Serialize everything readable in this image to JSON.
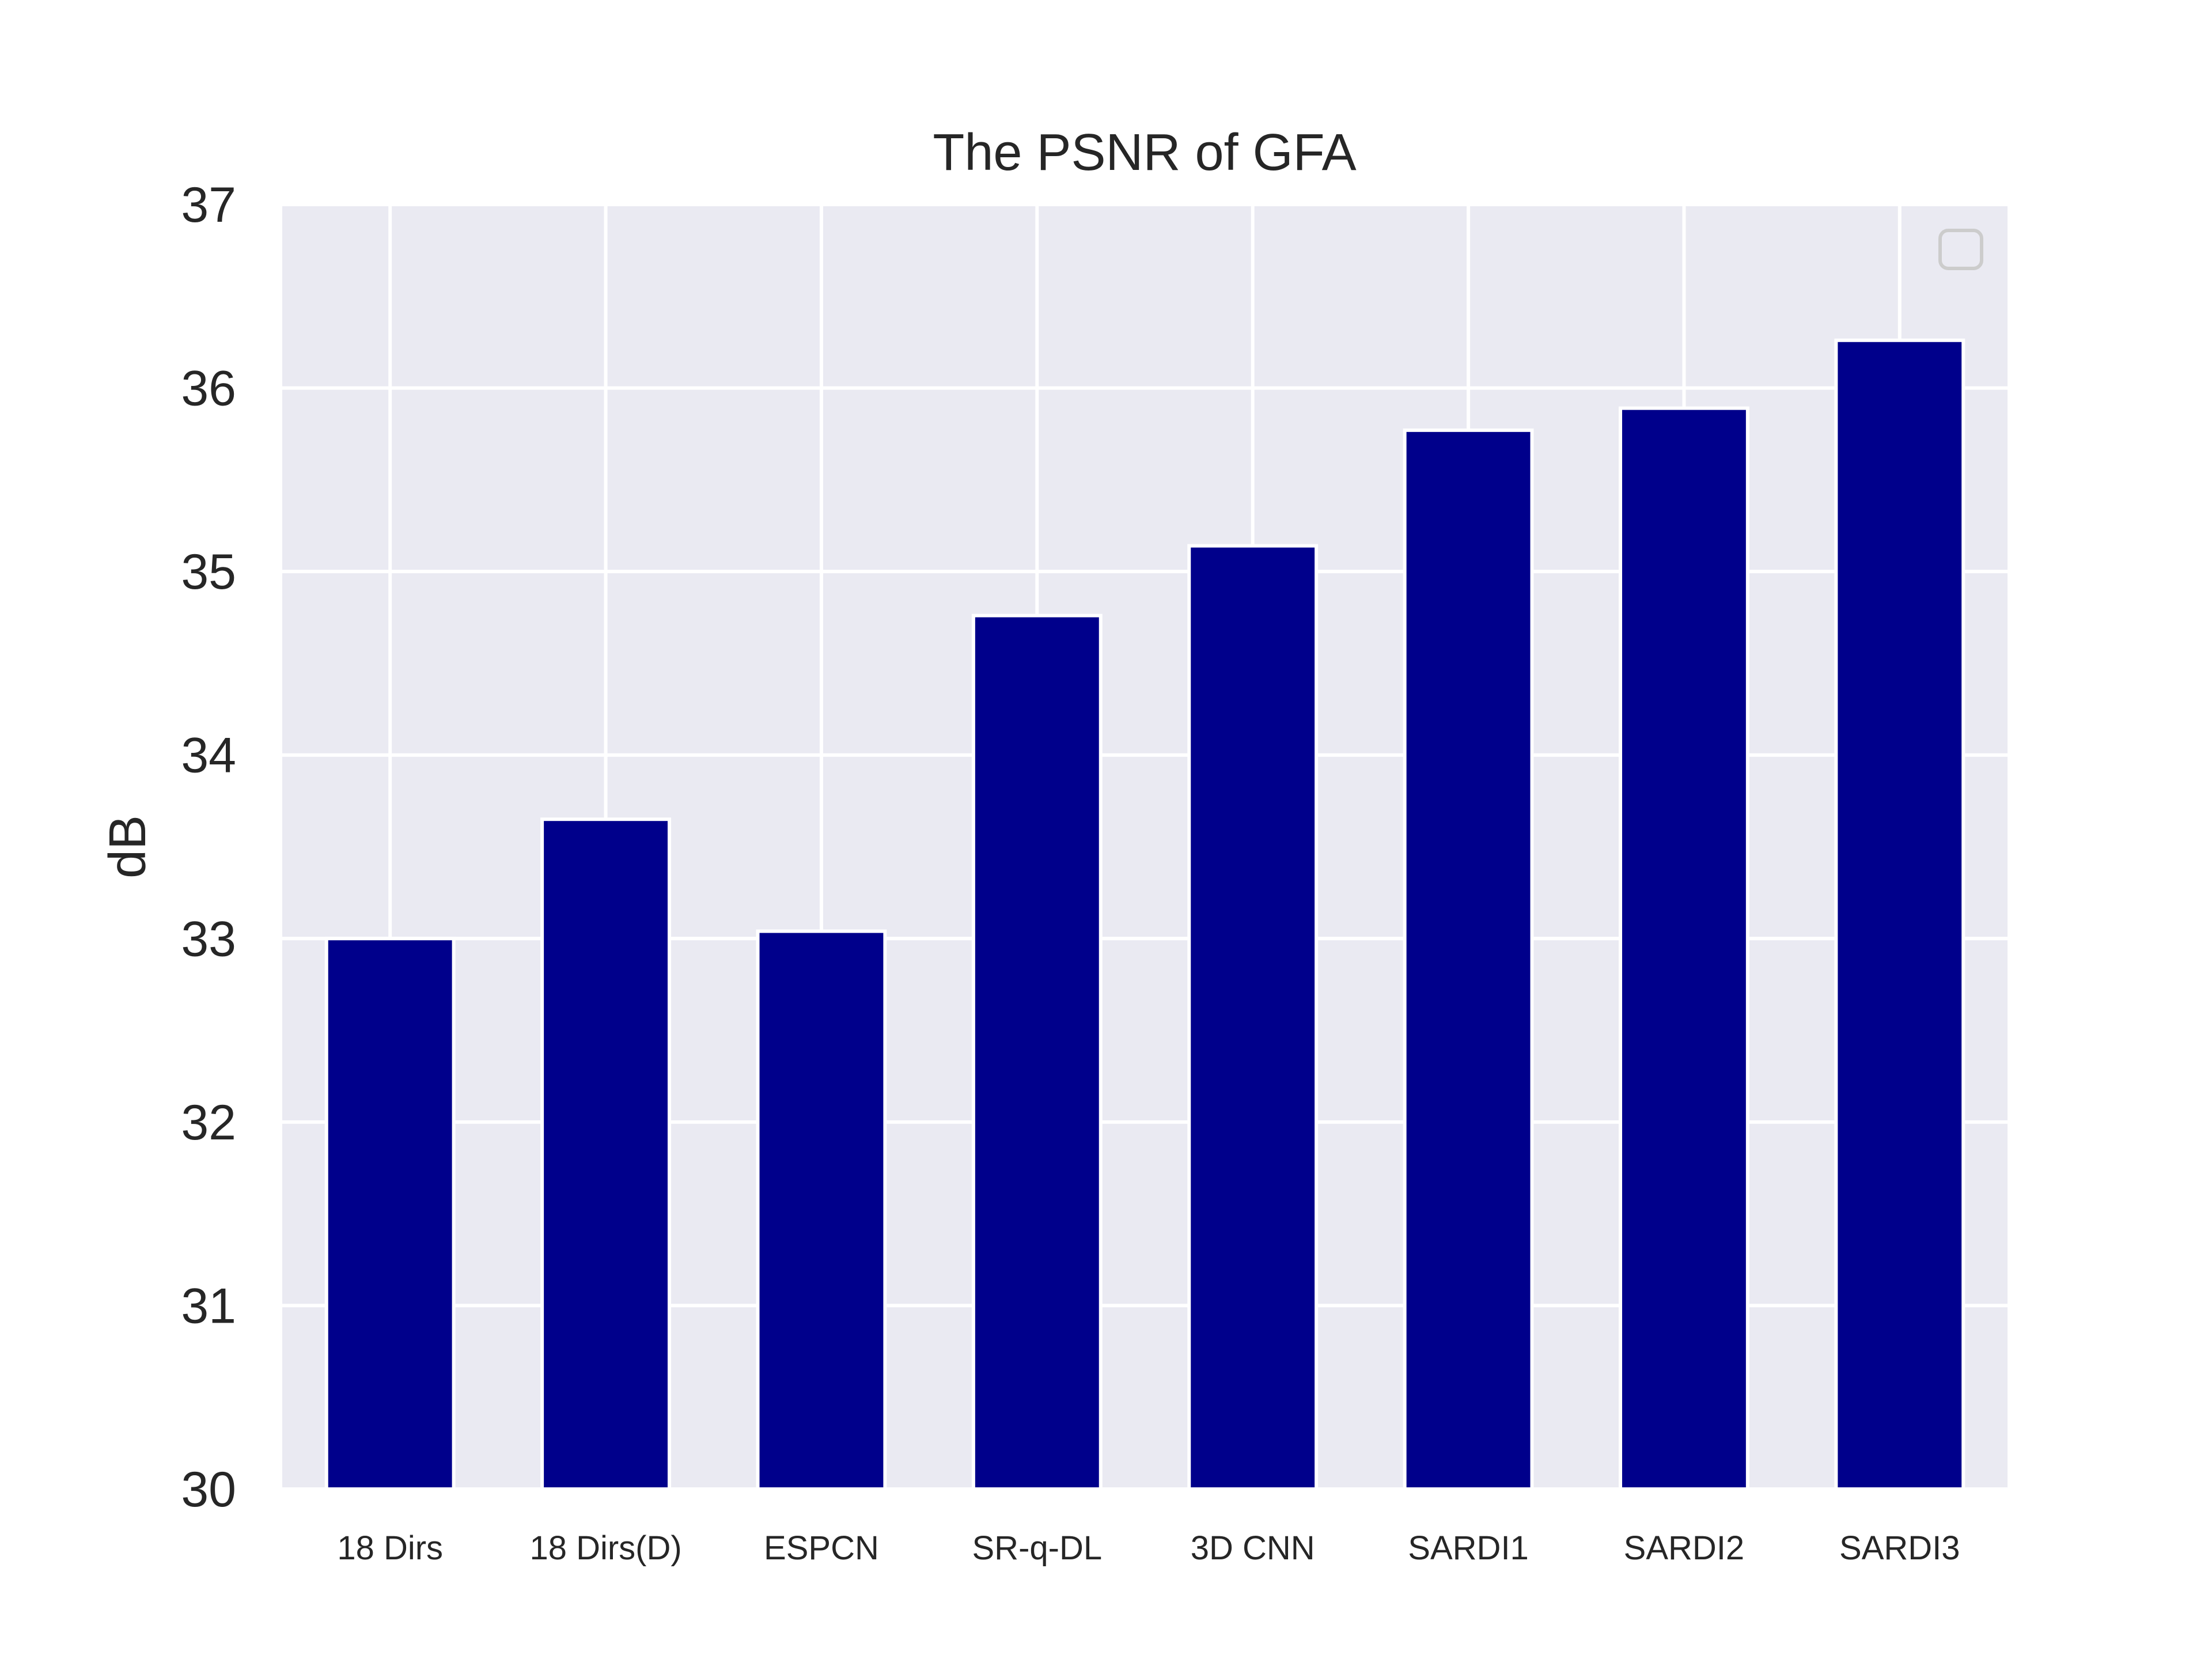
{
  "chart_data": {
    "type": "bar",
    "title": "The PSNR of GFA",
    "xlabel": "",
    "ylabel": "dB",
    "categories": [
      "18 Dirs",
      "18 Dirs(D)",
      "ESPCN",
      "SR-q-DL",
      "3D CNN",
      "SARDI1",
      "SARDI2",
      "SARDI3"
    ],
    "values": [
      33.0,
      33.65,
      33.04,
      34.76,
      35.14,
      35.77,
      35.89,
      36.26
    ],
    "ylim": [
      30,
      37
    ],
    "yticks": [
      "30",
      "31",
      "32",
      "33",
      "34",
      "35",
      "36",
      "37"
    ],
    "grid": true,
    "legend": "top-right",
    "colors": {
      "bar": "#00008b",
      "bar_edge": "#ffffff",
      "plot_background": "#eaeaf2",
      "grid": "#ffffff",
      "text": "#262626"
    }
  }
}
